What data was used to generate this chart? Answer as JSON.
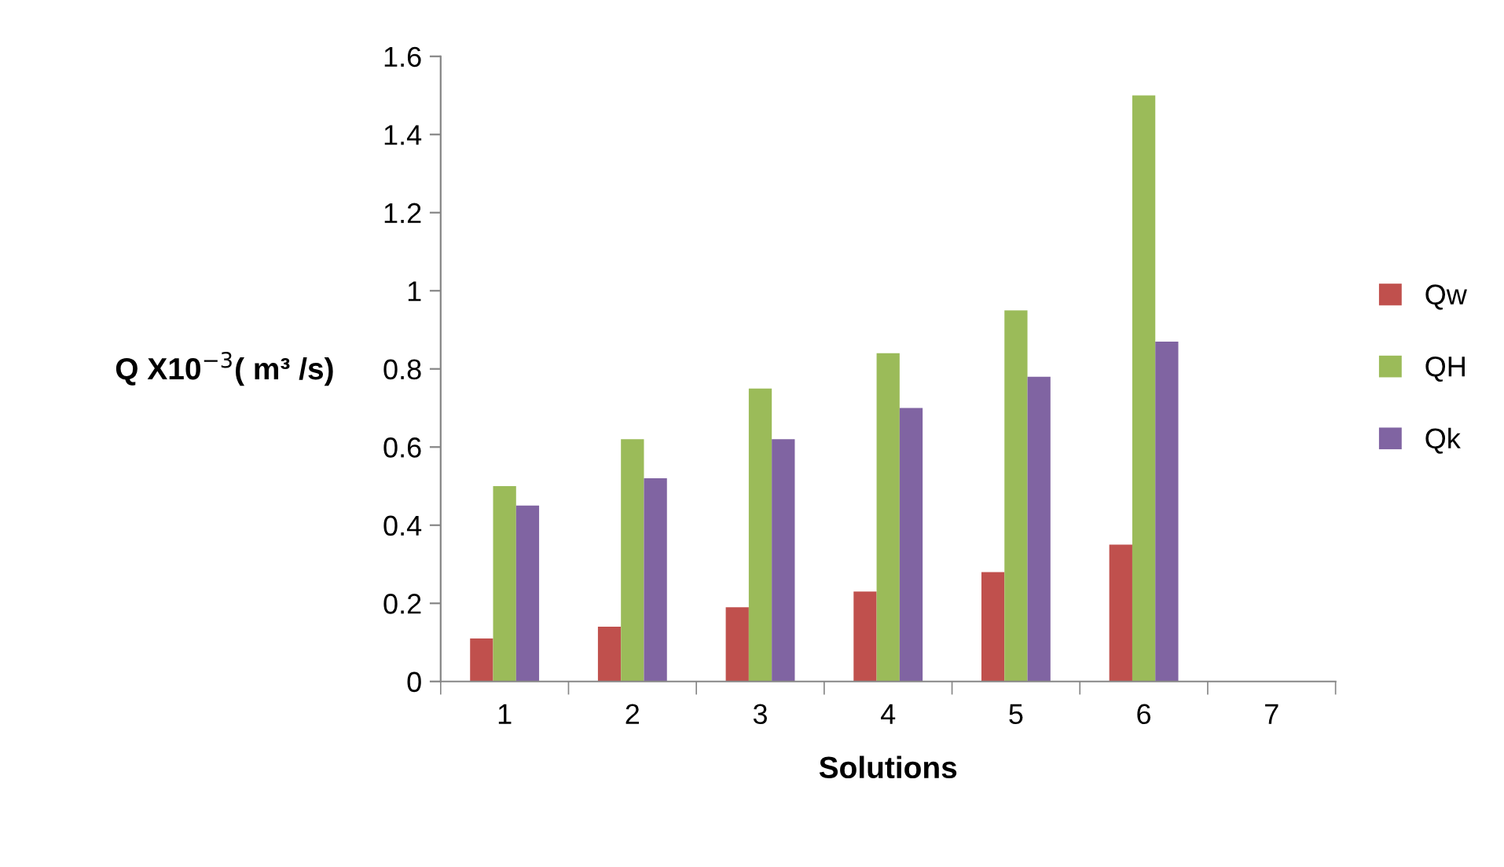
{
  "chart_data": {
    "type": "bar",
    "xlabel": "Solutions",
    "ylabel": "Q X10$^{−3}$( m³ /s)",
    "categories": [
      "1",
      "2",
      "3",
      "4",
      "5",
      "6",
      "7"
    ],
    "series": [
      {
        "name": "Qw",
        "color": "#c0504d",
        "values": [
          0.11,
          0.14,
          0.19,
          0.23,
          0.28,
          0.35,
          null
        ]
      },
      {
        "name": "QH",
        "color": "#9bbb59",
        "values": [
          0.5,
          0.62,
          0.75,
          0.84,
          0.95,
          1.5,
          null
        ]
      },
      {
        "name": "Qk",
        "color": "#8064a2",
        "values": [
          0.45,
          0.52,
          0.62,
          0.7,
          0.78,
          0.87,
          null
        ]
      }
    ],
    "ylim": [
      0,
      1.6
    ],
    "yticks": [
      0,
      0.2,
      0.4,
      0.6,
      0.8,
      1,
      1.2,
      1.4,
      1.6
    ],
    "grid": false,
    "legend": "right"
  }
}
